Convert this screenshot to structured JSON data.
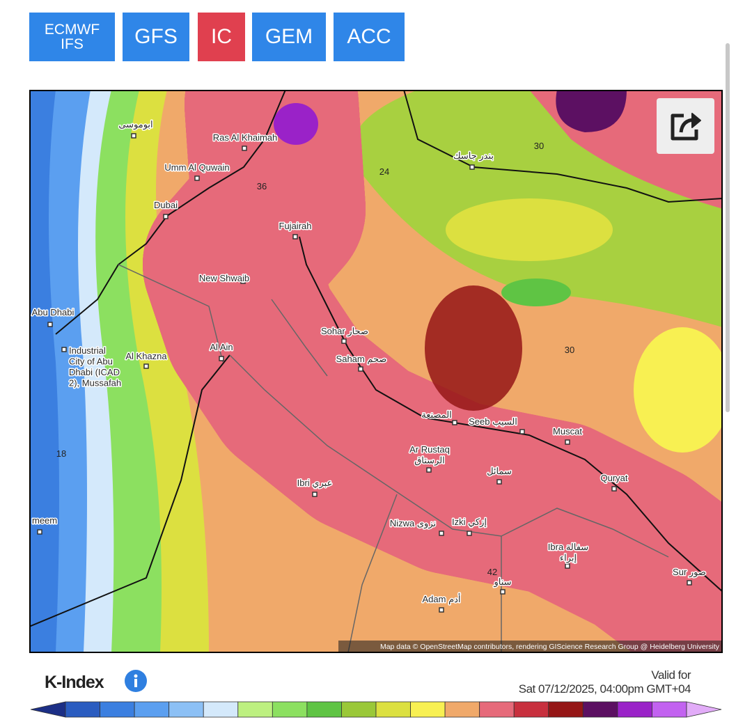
{
  "tabs": [
    {
      "lines": [
        "ECMWF",
        "IFS"
      ]
    },
    {
      "lines": [
        "GFS"
      ]
    },
    {
      "lines": [
        "IC"
      ],
      "selected": true
    },
    {
      "lines": [
        "GEM"
      ]
    },
    {
      "lines": [
        "ACC"
      ]
    }
  ],
  "map": {
    "places": [
      {
        "lines": [
          "ابوموسى"
        ]
      },
      {
        "lines": [
          "Ras Al Khaimah"
        ]
      },
      {
        "lines": [
          "Umm Al Quwain"
        ]
      },
      {
        "lines": [
          "Dubai"
        ]
      },
      {
        "lines": [
          "Fujairah"
        ]
      },
      {
        "lines": [
          "New Shwaib"
        ]
      },
      {
        "lines": [
          "Abu Dhabi"
        ]
      },
      {
        "lines": [
          "Industrial",
          "City of Abu",
          "Dhabi (ICAD",
          "2), Mussafah"
        ]
      },
      {
        "lines": [
          "Al Khazna"
        ]
      },
      {
        "lines": [
          "Al Ain"
        ]
      },
      {
        "lines": [
          "Sohar صحار"
        ]
      },
      {
        "lines": [
          "Saham صحم"
        ]
      },
      {
        "lines": [
          "المصنعة"
        ]
      },
      {
        "lines": [
          "Seeb السيب"
        ]
      },
      {
        "lines": [
          "Muscat"
        ]
      },
      {
        "lines": [
          "Ar Rustaq",
          "الرستاق"
        ]
      },
      {
        "lines": [
          "سمائل"
        ]
      },
      {
        "lines": [
          "Quryat"
        ]
      },
      {
        "lines": [
          "Ibri عبري"
        ]
      },
      {
        "lines": [
          "meem"
        ]
      },
      {
        "lines": [
          "Nizwa نزوى"
        ]
      },
      {
        "lines": [
          "Izki إزكي"
        ]
      },
      {
        "lines": [
          "Ibra سفالة",
          "إبراء"
        ]
      },
      {
        "lines": [
          "Sur صور"
        ]
      },
      {
        "lines": [
          "سناو"
        ]
      },
      {
        "lines": [
          "Adam أدم"
        ]
      },
      {
        "lines": [
          "بندر جاسك"
        ]
      }
    ],
    "contour_labels": [
      "30",
      "24",
      "36",
      "30",
      "18",
      "42"
    ],
    "attribution": "Map data © OpenStreetMap contributors, rendering GIScience Research Group @ Heidelberg University"
  },
  "legend": {
    "title": "K-Index",
    "valid_label": "Valid for",
    "valid_time": "Sat 07/12/2025, 04:00pm GMT+04",
    "colors": [
      "#1c2f86",
      "#2a5cc0",
      "#3b7fe0",
      "#5b9ff0",
      "#8cc0f5",
      "#d4e9fb",
      "#bdf080",
      "#8ce060",
      "#5fc444",
      "#9ac838",
      "#dce040",
      "#f8f052",
      "#f0a96a",
      "#e66a7a",
      "#c8303e",
      "#951616",
      "#5c1062",
      "#9a22c8",
      "#c262f0",
      "#e2acf8"
    ]
  }
}
